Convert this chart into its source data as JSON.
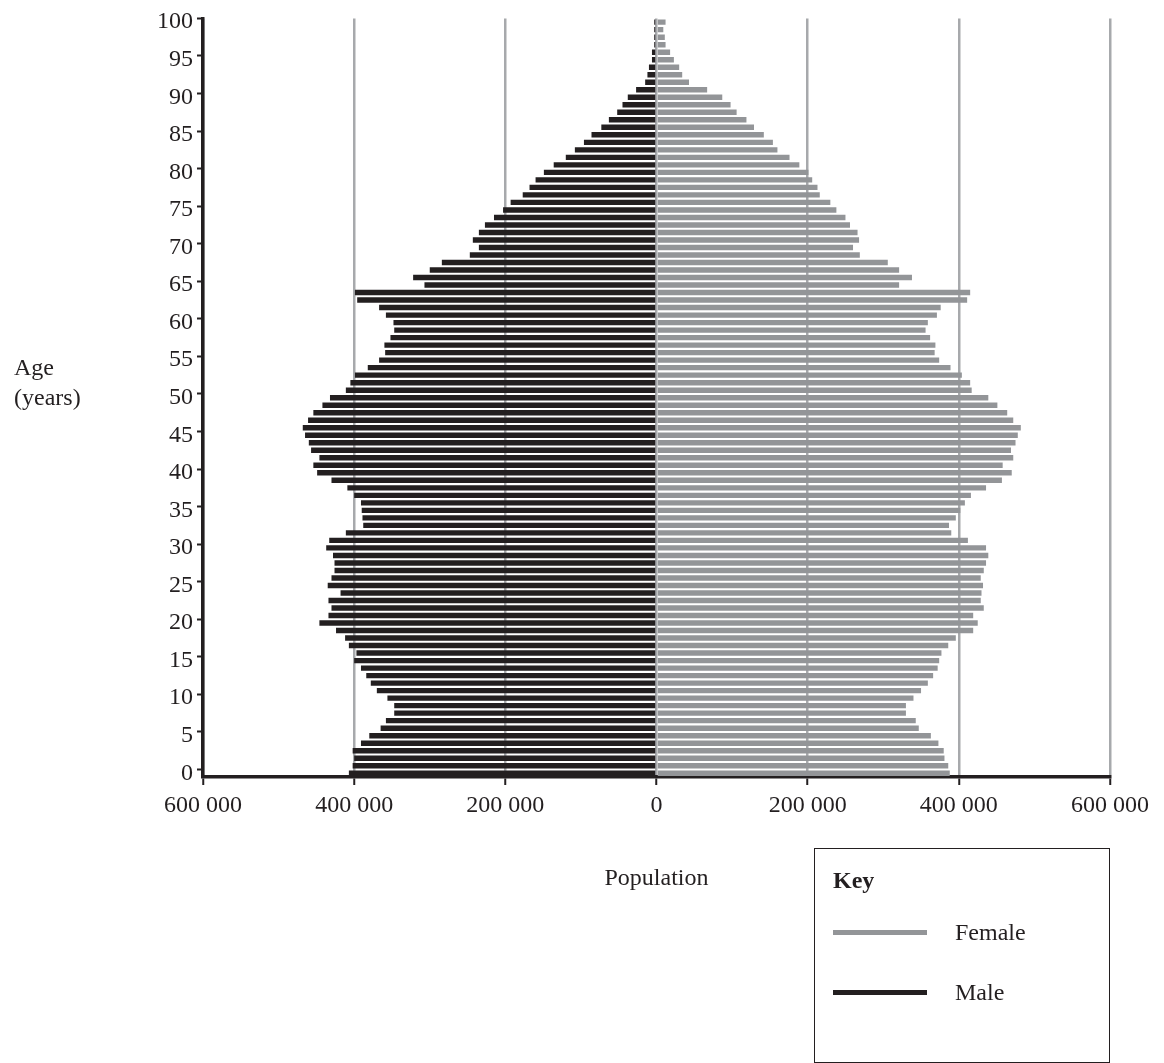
{
  "chart_data": {
    "type": "bar",
    "orientation": "horizontal",
    "stacked": true,
    "xlabel": "Population",
    "ylabel": "Age (years)",
    "legend_title": "Key",
    "legend": "bottom right",
    "grid": "x",
    "categories": [
      "100",
      null,
      null,
      null,
      null,
      "95",
      null,
      null,
      null,
      null,
      "90",
      null,
      null,
      null,
      null,
      "85",
      null,
      null,
      null,
      null,
      "80",
      null,
      null,
      null,
      null,
      "75",
      null,
      null,
      null,
      null,
      "70",
      null,
      null,
      null,
      null,
      "65",
      null,
      null,
      null,
      null,
      "60",
      null,
      null,
      null,
      null,
      "55",
      null,
      null,
      null,
      null,
      "50",
      null,
      null,
      null,
      null,
      "45",
      null,
      null,
      null,
      null,
      "40",
      null,
      null,
      null,
      null,
      "35",
      null,
      null,
      null,
      null,
      "30",
      null,
      null,
      null,
      null,
      "25",
      null,
      null,
      null,
      null,
      "20",
      null,
      null,
      null,
      null,
      "15",
      null,
      null,
      null,
      null,
      "10",
      null,
      null,
      null,
      null,
      "5",
      null,
      null,
      null,
      null,
      "0"
    ],
    "xlim": [
      -600000,
      600000
    ],
    "xticks": [
      {
        "value": -600000,
        "label": "600 000"
      },
      {
        "value": -400000,
        "label": "400 000"
      },
      {
        "value": -200000,
        "label": "200 000"
      },
      0,
      {
        "value": 200000,
        "label": "200 000"
      },
      {
        "value": 400000,
        "label": "400 000"
      },
      {
        "value": 600000,
        "label": "600 000"
      }
    ],
    "series": [
      {
        "name": "Female",
        "color": "#939598",
        "values": [
          12000,
          9000,
          11000,
          12000,
          18000,
          23000,
          30000,
          34000,
          43000,
          67000,
          87000,
          98000,
          106000,
          119000,
          129000,
          142000,
          154000,
          160000,
          176000,
          189000,
          201000,
          206000,
          213000,
          216000,
          230000,
          238000,
          250000,
          256000,
          266000,
          268000,
          260000,
          269000,
          306000,
          321000,
          338000,
          321000,
          415000,
          411000,
          376000,
          371000,
          359000,
          356000,
          362000,
          369000,
          368000,
          374000,
          389000,
          404000,
          415000,
          417000,
          439000,
          451000,
          464000,
          472000,
          482000,
          478000,
          475000,
          469000,
          472000,
          458000,
          470000,
          457000,
          436000,
          416000,
          408000,
          402000,
          396000,
          387000,
          390000,
          412000,
          436000,
          439000,
          436000,
          433000,
          429000,
          432000,
          430000,
          429000,
          433000,
          419000,
          425000,
          419000,
          396000,
          386000,
          377000,
          374000,
          372000,
          366000,
          359000,
          350000,
          340000,
          330000,
          330000,
          343000,
          347000,
          363000,
          373000,
          380000,
          381000,
          386000,
          388000
        ]
      },
      {
        "name": "Male",
        "color": "#231f20",
        "values": [
          -3000,
          -3000,
          -3000,
          -3000,
          -6000,
          -6000,
          -10000,
          -12000,
          -15000,
          -27000,
          -38000,
          -45000,
          -52000,
          -63000,
          -73000,
          -86000,
          -96000,
          -108000,
          -120000,
          -136000,
          -149000,
          -160000,
          -168000,
          -177000,
          -193000,
          -203000,
          -215000,
          -227000,
          -235000,
          -243000,
          -235000,
          -247000,
          -284000,
          -300000,
          -322000,
          -307000,
          -399000,
          -396000,
          -367000,
          -358000,
          -348000,
          -347000,
          -352000,
          -360000,
          -359000,
          -367000,
          -382000,
          -399000,
          -405000,
          -411000,
          -432000,
          -442000,
          -454000,
          -461000,
          -468000,
          -465000,
          -460000,
          -457000,
          -446000,
          -454000,
          -449000,
          -430000,
          -409000,
          -400000,
          -391000,
          -390000,
          -389000,
          -388000,
          -411000,
          -433000,
          -437000,
          -428000,
          -426000,
          -426000,
          -430000,
          -435000,
          -418000,
          -434000,
          -430000,
          -434000,
          -446000,
          -424000,
          -412000,
          -407000,
          -397000,
          -400000,
          -391000,
          -384000,
          -378000,
          -370000,
          -356000,
          -347000,
          -347000,
          -358000,
          -365000,
          -380000,
          -391000,
          -402000,
          -400000,
          -402000,
          -407000
        ]
      }
    ]
  }
}
